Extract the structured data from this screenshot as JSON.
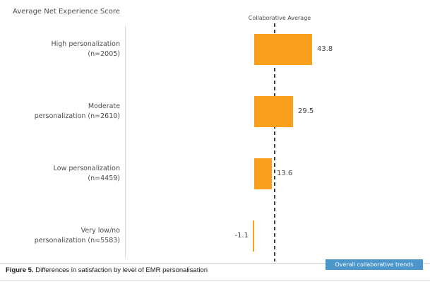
{
  "chart": {
    "title": "Average Net Experience Score",
    "bar_color": "#F9A11E",
    "reference_line_color": "#3a3a3a",
    "axis_color": "#d9d9d9",
    "label_color": "#4d4d4d"
  },
  "chart_data": {
    "type": "bar",
    "orientation": "horizontal",
    "title": "Average Net Experience Score",
    "categories": [
      [
        "High personalization",
        "(n=2005)"
      ],
      [
        "Moderate",
        "personalization (n=2610)"
      ],
      [
        "Low personalization",
        "(n=4459)"
      ],
      [
        "Very low/no",
        "personalization (n=5583)"
      ]
    ],
    "values": [
      43.8,
      29.5,
      13.6,
      -1.1
    ],
    "value_labels": [
      "43.8",
      "29.5",
      "13.6",
      "-1.1"
    ],
    "reference_line": {
      "label": "Collaborative Average",
      "value": 15.5,
      "style": "dashed"
    },
    "grid": false,
    "legend": false
  },
  "footer": {
    "caption_prefix": "Figure 5.",
    "caption_text": " Differences in satisfaction by level of EMR personalisation",
    "badge_label": "Overall collaborative trends",
    "badge_color": "#4B96CB"
  }
}
